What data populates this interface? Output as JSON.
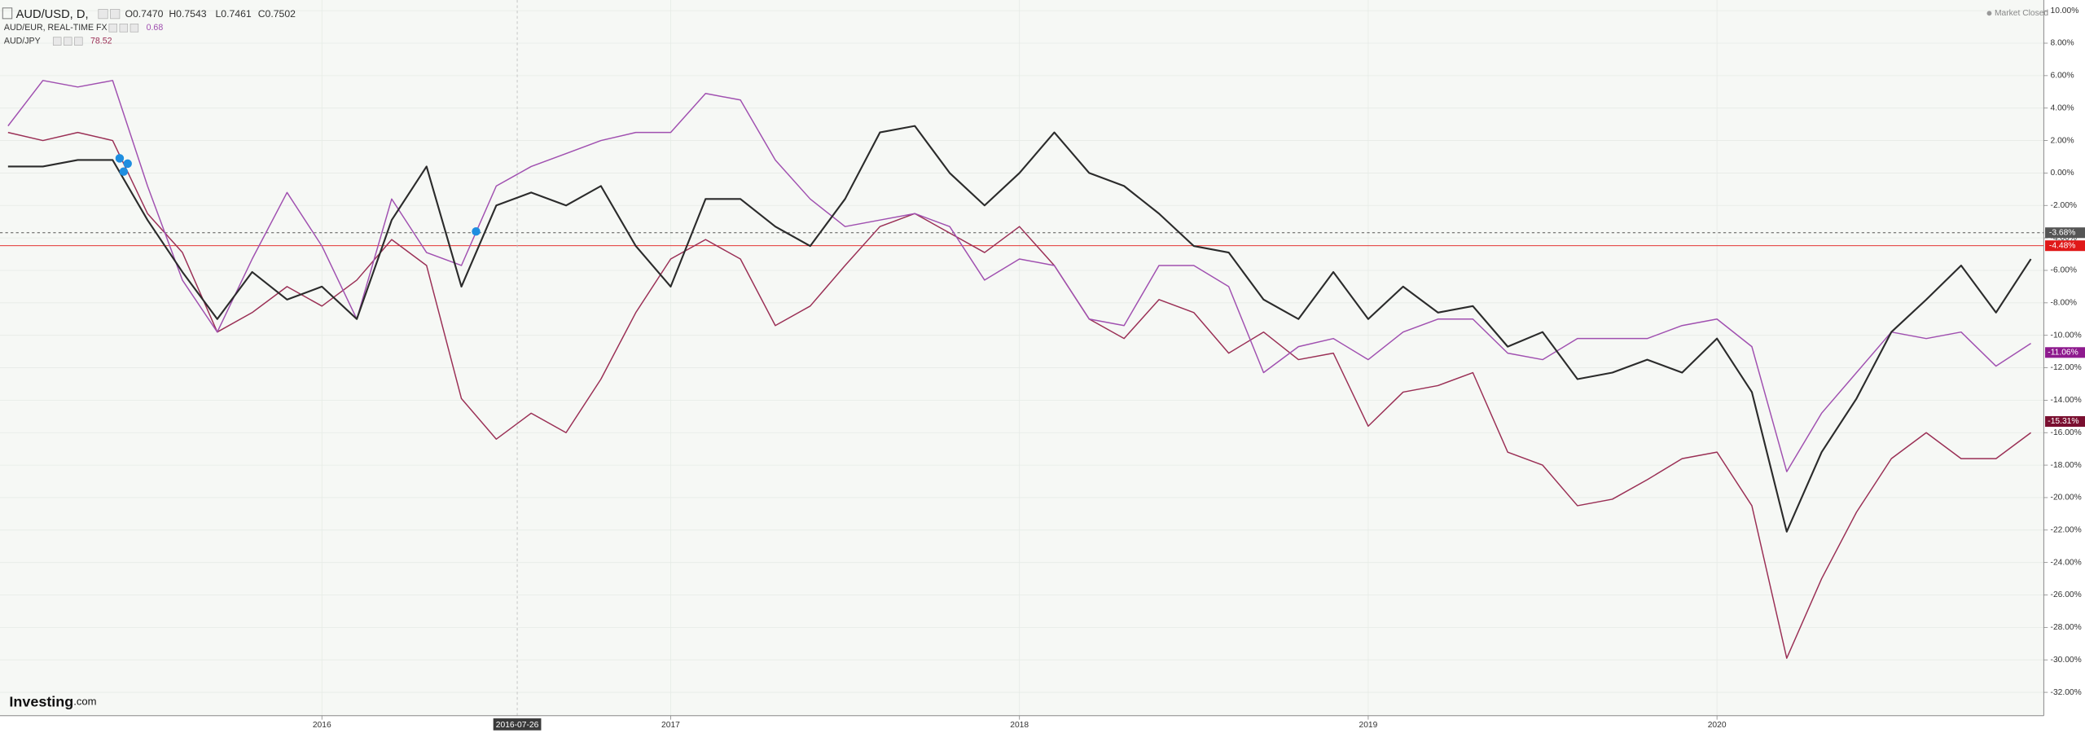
{
  "chart_data": {
    "type": "line",
    "header": {
      "ohlc": [
        "O0.7470",
        "H0.7543",
        "L0.7461",
        "C0.7502"
      ],
      "status": "Market Closed",
      "brand": "Investing",
      "brand_suffix": ".com"
    },
    "x": [
      2015.1,
      2015.2,
      2015.3,
      2015.4,
      2015.5,
      2015.6,
      2015.7,
      2015.8,
      2015.9,
      2016.0,
      2016.1,
      2016.2,
      2016.3,
      2016.4,
      2016.5,
      2016.6,
      2016.7,
      2016.8,
      2016.9,
      2017.0,
      2017.1,
      2017.2,
      2017.3,
      2017.4,
      2017.5,
      2017.6,
      2017.7,
      2017.8,
      2017.9,
      2018.0,
      2018.1,
      2018.2,
      2018.3,
      2018.4,
      2018.5,
      2018.6,
      2018.7,
      2018.8,
      2018.9,
      2019.0,
      2019.1,
      2019.2,
      2019.3,
      2019.4,
      2019.5,
      2019.6,
      2019.7,
      2019.8,
      2019.9,
      2020.0,
      2020.1,
      2020.2,
      2020.3,
      2020.4,
      2020.5,
      2020.6,
      2020.7,
      2020.8,
      2020.9
    ],
    "series": [
      {
        "name": "AUD/USD, D,",
        "color": "#2b2b2b",
        "values": [
          0.4,
          0.4,
          0.8,
          0.8,
          -2.9,
          -6.1,
          -9.0,
          -6.1,
          -7.8,
          -7.0,
          -9.0,
          -2.9,
          0.4,
          -7.0,
          -2.0,
          -1.2,
          -2.0,
          -0.8,
          -4.5,
          -7.0,
          -1.6,
          -1.6,
          -3.3,
          -4.5,
          -1.6,
          2.5,
          2.9,
          0,
          -2.0,
          0,
          2.5,
          0,
          -0.8,
          -2.5,
          -4.5,
          -4.9,
          -7.8,
          -9.0,
          -6.1,
          -9.0,
          -7.0,
          -8.6,
          -8.2,
          -10.7,
          -9.8,
          -12.7,
          -12.3,
          -11.5,
          -12.3,
          -10.2,
          -13.5,
          -22.1,
          -17.2,
          -13.9,
          -9.8,
          -7.8,
          -5.7,
          -8.6,
          -5.3
        ]
      },
      {
        "name": "AUD/EUR, REAL-TIME FX",
        "color": "#a050b0",
        "last_value": "0.68",
        "last_label": {
          "value": -11.06,
          "label": "-11.06%"
        },
        "tag_color": "#8e1a8e",
        "values": [
          2.9,
          5.7,
          5.3,
          5.7,
          -0.8,
          -6.6,
          -9.8,
          -5.3,
          -1.2,
          -4.5,
          -9.0,
          -1.6,
          -4.9,
          -5.7,
          -0.8,
          0.4,
          1.2,
          2.0,
          2.5,
          2.5,
          4.9,
          4.5,
          0.8,
          -1.6,
          -3.3,
          -2.9,
          -2.5,
          -3.3,
          -6.6,
          -5.3,
          -5.7,
          -9.0,
          -9.4,
          -5.7,
          -5.7,
          -7.0,
          -12.3,
          -10.7,
          -10.2,
          -11.5,
          -9.8,
          -9.0,
          -9.0,
          -11.1,
          -11.5,
          -10.2,
          -10.2,
          -10.2,
          -9.4,
          -9.0,
          -10.7,
          -18.4,
          -14.8,
          -12.3,
          -9.8,
          -10.2,
          -9.8,
          -11.9,
          -10.5
        ]
      },
      {
        "name": "AUD/JPY",
        "color": "#9a2f55",
        "last_value": "78.52",
        "last_label": {
          "value": -15.31,
          "label": "-15.31%"
        },
        "tag_color": "#7a0f30",
        "values": [
          2.5,
          2.0,
          2.5,
          2.0,
          -2.5,
          -4.9,
          -9.8,
          -8.6,
          -7.0,
          -8.2,
          -6.6,
          -4.1,
          -5.7,
          -13.9,
          -16.4,
          -14.8,
          -16.0,
          -12.7,
          -8.6,
          -5.3,
          -4.1,
          -5.3,
          -9.4,
          -8.2,
          -5.7,
          -3.3,
          -2.5,
          -3.7,
          -4.9,
          -3.3,
          -5.7,
          -9.0,
          -10.2,
          -7.8,
          -8.6,
          -11.1,
          -9.8,
          -11.5,
          -11.1,
          -15.6,
          -13.5,
          -13.1,
          -12.3,
          -17.2,
          -18.0,
          -20.5,
          -20.1,
          -18.9,
          -17.6,
          -17.2,
          -20.5,
          -29.9,
          -25.0,
          -20.9,
          -17.6,
          -16.0,
          -17.6,
          -17.6,
          -16.0
        ]
      }
    ],
    "price_lines": [
      {
        "value": -3.68,
        "label": "-3.68%",
        "color": "#555555",
        "style": "dashed"
      },
      {
        "value": -4.48,
        "label": "-4.48%",
        "color": "#e01818",
        "style": "solid"
      }
    ],
    "crosshair": {
      "value": 2016.56,
      "label": "2016-07-26"
    },
    "xlim": [
      2015.077,
      2020.937
    ],
    "xticks": [
      2016,
      2017,
      2018,
      2019,
      2020
    ],
    "ylim": [
      -33.44,
      10.66
    ],
    "yticks": [
      {
        "value": 10,
        "label": "10.00%"
      },
      {
        "value": 8,
        "label": "8.00%"
      },
      {
        "value": 6,
        "label": "6.00%"
      },
      {
        "value": 4,
        "label": "4.00%"
      },
      {
        "value": 2,
        "label": "2.00%"
      },
      {
        "value": 0,
        "label": "0.00%"
      },
      {
        "value": -2,
        "label": "-2.00%"
      },
      {
        "value": -4,
        "label": "-4.00%"
      },
      {
        "value": -6,
        "label": "-6.00%"
      },
      {
        "value": -8,
        "label": "-8.00%"
      },
      {
        "value": -10,
        "label": "-10.00%"
      },
      {
        "value": -12,
        "label": "-12.00%"
      },
      {
        "value": -14,
        "label": "-14.00%"
      },
      {
        "value": -16,
        "label": "-16.00%"
      },
      {
        "value": -18,
        "label": "-18.00%"
      },
      {
        "value": -20,
        "label": "-20.00%"
      },
      {
        "value": -22,
        "label": "-22.00%"
      },
      {
        "value": -24,
        "label": "-24.00%"
      },
      {
        "value": -26,
        "label": "-26.00%"
      },
      {
        "value": -28,
        "label": "-28.00%"
      },
      {
        "value": -30,
        "label": "-30.00%"
      },
      {
        "value": -32,
        "label": "-32.00%"
      }
    ],
    "grid": true
  }
}
